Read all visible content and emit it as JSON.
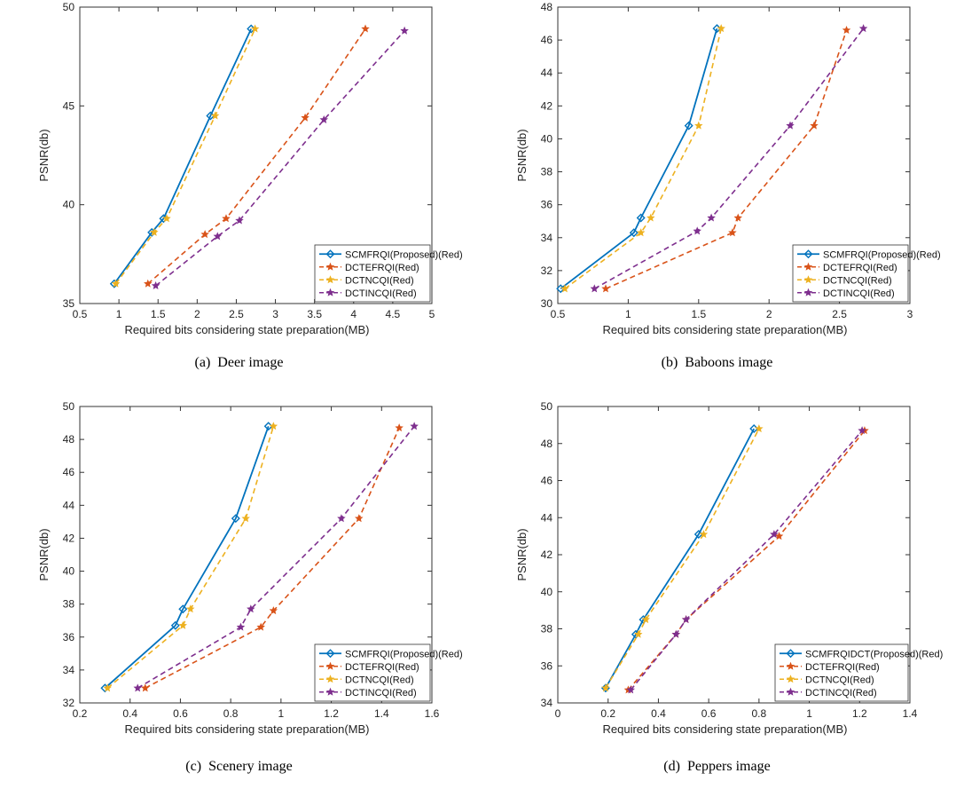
{
  "chart_data": [
    {
      "type": "line",
      "caption_label": "(a)",
      "caption_text": "Deer image",
      "xlabel": "Required bits considering state preparation(MB)",
      "ylabel": "PSNR(db)",
      "xlim": [
        0.5,
        5
      ],
      "ylim": [
        35,
        50
      ],
      "xticks": [
        0.5,
        1,
        1.5,
        2,
        2.5,
        3,
        3.5,
        4,
        4.5,
        5
      ],
      "yticks": [
        35,
        40,
        45,
        50
      ],
      "legend_position": "bottom-right",
      "series": [
        {
          "name": "SCMFRQI(Proposed)(Red)",
          "x": [
            0.94,
            1.42,
            1.57,
            2.17,
            2.69
          ],
          "y": [
            36.0,
            38.6,
            39.3,
            44.5,
            48.9
          ]
        },
        {
          "name": "DCTEFRQI(Red)",
          "x": [
            1.37,
            2.1,
            2.37,
            3.38,
            4.15
          ],
          "y": [
            36.0,
            38.5,
            39.3,
            44.4,
            48.9
          ]
        },
        {
          "name": "DCTNCQI(Red)",
          "x": [
            0.96,
            1.45,
            1.61,
            2.23,
            2.74
          ],
          "y": [
            36.0,
            38.6,
            39.3,
            44.5,
            48.9
          ]
        },
        {
          "name": "DCTINCQI(Red)",
          "x": [
            1.47,
            2.26,
            2.54,
            3.62,
            4.65
          ],
          "y": [
            35.9,
            38.4,
            39.2,
            44.3,
            48.8
          ]
        }
      ]
    },
    {
      "type": "line",
      "caption_label": "(b)",
      "caption_text": "Baboons image",
      "xlabel": "Required bits considering state preparation(MB)",
      "ylabel": "PSNR(db)",
      "xlim": [
        0.5,
        3
      ],
      "ylim": [
        30,
        48
      ],
      "xticks": [
        0.5,
        1,
        1.5,
        2,
        2.5,
        3
      ],
      "yticks": [
        30,
        32,
        34,
        36,
        38,
        40,
        42,
        44,
        46,
        48
      ],
      "legend_position": "bottom-right",
      "series": [
        {
          "name": "SCMFRQI(Proposed)(Red)",
          "x": [
            0.52,
            1.04,
            1.09,
            1.43,
            1.63
          ],
          "y": [
            30.9,
            34.3,
            35.2,
            40.8,
            46.7
          ]
        },
        {
          "name": "DCTEFRQI(Red)",
          "x": [
            0.84,
            1.74,
            1.78,
            2.32,
            2.55
          ],
          "y": [
            30.9,
            34.3,
            35.2,
            40.8,
            46.6
          ]
        },
        {
          "name": "DCTNCQI(Red)",
          "x": [
            0.55,
            1.09,
            1.16,
            1.5,
            1.66
          ],
          "y": [
            30.9,
            34.3,
            35.2,
            40.8,
            46.7
          ]
        },
        {
          "name": "DCTINCQI(Red)",
          "x": [
            0.76,
            1.49,
            1.59,
            2.15,
            2.67
          ],
          "y": [
            30.9,
            34.4,
            35.2,
            40.8,
            46.7
          ]
        }
      ]
    },
    {
      "type": "line",
      "caption_label": "(c)",
      "caption_text": "Scenery image",
      "xlabel": "Required bits considering state preparation(MB)",
      "ylabel": "PSNR(db)",
      "xlim": [
        0.2,
        1.6
      ],
      "ylim": [
        32,
        50
      ],
      "xticks": [
        0.2,
        0.4,
        0.6,
        0.8,
        1,
        1.2,
        1.4,
        1.6
      ],
      "yticks": [
        32,
        34,
        36,
        38,
        40,
        42,
        44,
        46,
        48,
        50
      ],
      "legend_position": "bottom-right",
      "series": [
        {
          "name": "SCMFRQI(Proposed)(Red)",
          "x": [
            0.3,
            0.58,
            0.61,
            0.82,
            0.95
          ],
          "y": [
            32.9,
            36.7,
            37.7,
            43.2,
            48.8
          ]
        },
        {
          "name": "DCTEFRQI(Red)",
          "x": [
            0.46,
            0.92,
            0.97,
            1.31,
            1.47
          ],
          "y": [
            32.9,
            36.6,
            37.6,
            43.2,
            48.7
          ]
        },
        {
          "name": "DCTNCQI(Red)",
          "x": [
            0.31,
            0.61,
            0.64,
            0.86,
            0.97
          ],
          "y": [
            32.9,
            36.7,
            37.7,
            43.2,
            48.8
          ]
        },
        {
          "name": "DCTINCQI(Red)",
          "x": [
            0.43,
            0.84,
            0.88,
            1.24,
            1.53
          ],
          "y": [
            32.9,
            36.6,
            37.7,
            43.2,
            48.8
          ]
        }
      ]
    },
    {
      "type": "line",
      "caption_label": "(d)",
      "caption_text": "Peppers image",
      "xlabel": "Required bits considering state preparation(MB)",
      "ylabel": "PSNR(db)",
      "xlim": [
        0,
        1.4
      ],
      "ylim": [
        34,
        50
      ],
      "xticks": [
        0,
        0.2,
        0.4,
        0.6,
        0.8,
        1,
        1.2,
        1.4
      ],
      "yticks": [
        34,
        36,
        38,
        40,
        42,
        44,
        46,
        48,
        50
      ],
      "legend_position": "bottom-right",
      "series": [
        {
          "name": "SCMFRQIDCT(Proposed)(Red)",
          "x": [
            0.19,
            0.31,
            0.34,
            0.56,
            0.78
          ],
          "y": [
            34.8,
            37.7,
            38.5,
            43.1,
            48.8
          ]
        },
        {
          "name": "DCTEFRQI(Red)",
          "x": [
            0.28,
            0.47,
            0.51,
            0.88,
            1.22
          ],
          "y": [
            34.7,
            37.7,
            38.5,
            43.0,
            48.7
          ]
        },
        {
          "name": "DCTNCQI(Red)",
          "x": [
            0.19,
            0.32,
            0.35,
            0.58,
            0.8
          ],
          "y": [
            34.8,
            37.7,
            38.5,
            43.1,
            48.8
          ]
        },
        {
          "name": "DCTINCQI(Red)",
          "x": [
            0.29,
            0.47,
            0.51,
            0.86,
            1.21
          ],
          "y": [
            34.7,
            37.7,
            38.5,
            43.1,
            48.7
          ]
        }
      ]
    }
  ],
  "series_styles": [
    {
      "color": "#0072BD",
      "dash": "",
      "marker": "diamond",
      "width": 1.8
    },
    {
      "color": "#D95319",
      "dash": "6,4",
      "marker": "star",
      "width": 1.6
    },
    {
      "color": "#EDB120",
      "dash": "6,4",
      "marker": "star",
      "width": 1.6
    },
    {
      "color": "#7E2F8E",
      "dash": "6,4",
      "marker": "star",
      "width": 1.6
    }
  ]
}
